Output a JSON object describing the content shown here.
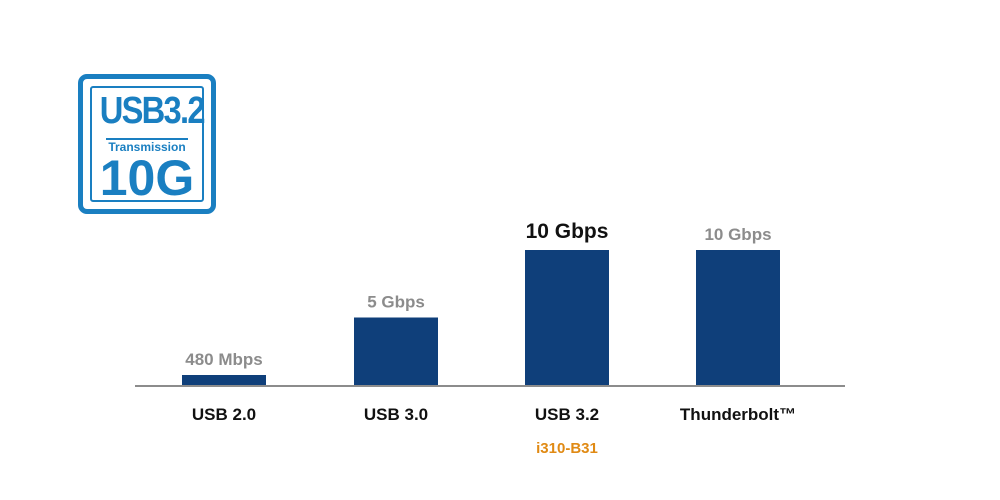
{
  "badge": {
    "top": "USB3.2",
    "middle": "Transmission",
    "bottom": "10G"
  },
  "colors": {
    "bar": "#0f3f7a",
    "badge": "#1a7fc1",
    "axis": "#8c8c8c",
    "highlight_text": "#e08a14"
  },
  "chart_data": {
    "type": "bar",
    "title": "",
    "xlabel": "",
    "ylabel": "",
    "ylim": [
      0,
      10
    ],
    "unit": "Gbps",
    "grid": false,
    "legend": "none",
    "categories": [
      "USB 2.0",
      "USB 3.0",
      "USB 3.2",
      "Thunderbolt™"
    ],
    "values": [
      0.48,
      5,
      10,
      10
    ],
    "value_labels": [
      "480 Mbps",
      "5 Gbps",
      "10 Gbps",
      "10 Gbps"
    ],
    "highlight_index": 2,
    "sublabels": [
      "",
      "",
      "i310-B31",
      ""
    ]
  }
}
